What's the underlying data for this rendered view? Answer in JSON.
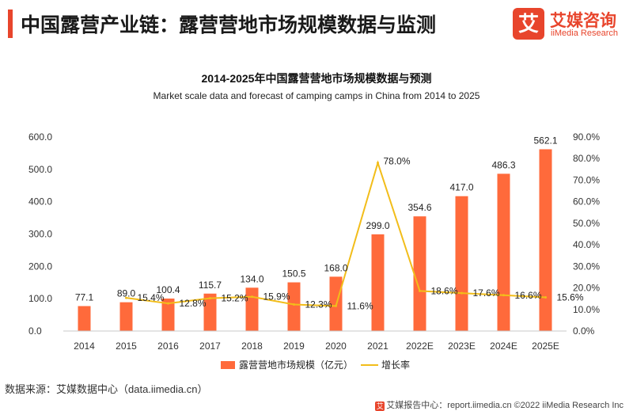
{
  "colors": {
    "accent": "#e8452c",
    "bar": "#ff6a3b",
    "line": "#f2bd1a",
    "axis_text": "#333333"
  },
  "header": {
    "title": "中国露营产业链：露营营地市场规模数据与监测"
  },
  "brand": {
    "icon_char": "艾",
    "name_cn": "艾媒咨询",
    "name_en": "iiMedia Research"
  },
  "chart_data": {
    "type": "bar",
    "title": "2014-2025年中国露营营地市场规模数据与预测",
    "subtitle": "Market scale data and forecast of camping camps in China from 2014 to 2025",
    "categories": [
      "2014",
      "2015",
      "2016",
      "2017",
      "2018",
      "2019",
      "2020",
      "2021",
      "2022E",
      "2023E",
      "2024E",
      "2025E"
    ],
    "series": [
      {
        "name": "露营营地市场规模（亿元）",
        "type": "bar",
        "axis": "left",
        "values": [
          77.1,
          89.0,
          100.4,
          115.7,
          134.0,
          150.5,
          168.0,
          299.0,
          354.6,
          417.0,
          486.3,
          562.1
        ],
        "labels": [
          "77.1",
          "89.0",
          "100.4",
          "115.7",
          "134.0",
          "150.5",
          "168.0",
          "299.0",
          "354.6",
          "417.0",
          "486.3",
          "562.1"
        ]
      },
      {
        "name": "增长率",
        "type": "line",
        "axis": "right",
        "values": [
          null,
          15.4,
          12.8,
          15.2,
          15.9,
          12.3,
          11.6,
          78.0,
          18.6,
          17.6,
          16.6,
          15.6
        ],
        "labels": [
          "",
          "15.4%",
          "12.8%",
          "15.2%",
          "15.9%",
          "12.3%",
          "11.6%",
          "78.0%",
          "18.6%",
          "17.6%",
          "16.6%",
          "15.6%"
        ]
      }
    ],
    "y_left": {
      "min": 0,
      "max": 600,
      "ticks": [
        0,
        100,
        200,
        300,
        400,
        500,
        600
      ],
      "tick_labels": [
        "0.0",
        "100.0",
        "200.0",
        "300.0",
        "400.0",
        "500.0",
        "600.0"
      ]
    },
    "y_right": {
      "min": 0,
      "max": 90,
      "ticks": [
        0,
        10,
        20,
        30,
        40,
        50,
        60,
        70,
        80,
        90
      ],
      "tick_labels": [
        "0.0%",
        "10.0%",
        "20.0%",
        "30.0%",
        "40.0%",
        "50.0%",
        "60.0%",
        "70.0%",
        "80.0%",
        "90.0%"
      ]
    },
    "grid": false,
    "legend": "bottom-center"
  },
  "source": {
    "text": "数据来源：艾媒数据中心（data.iimedia.cn）"
  },
  "footer": {
    "text": "艾媒报告中心：report.iimedia.cn  ©2022  iiMedia Research  Inc"
  }
}
